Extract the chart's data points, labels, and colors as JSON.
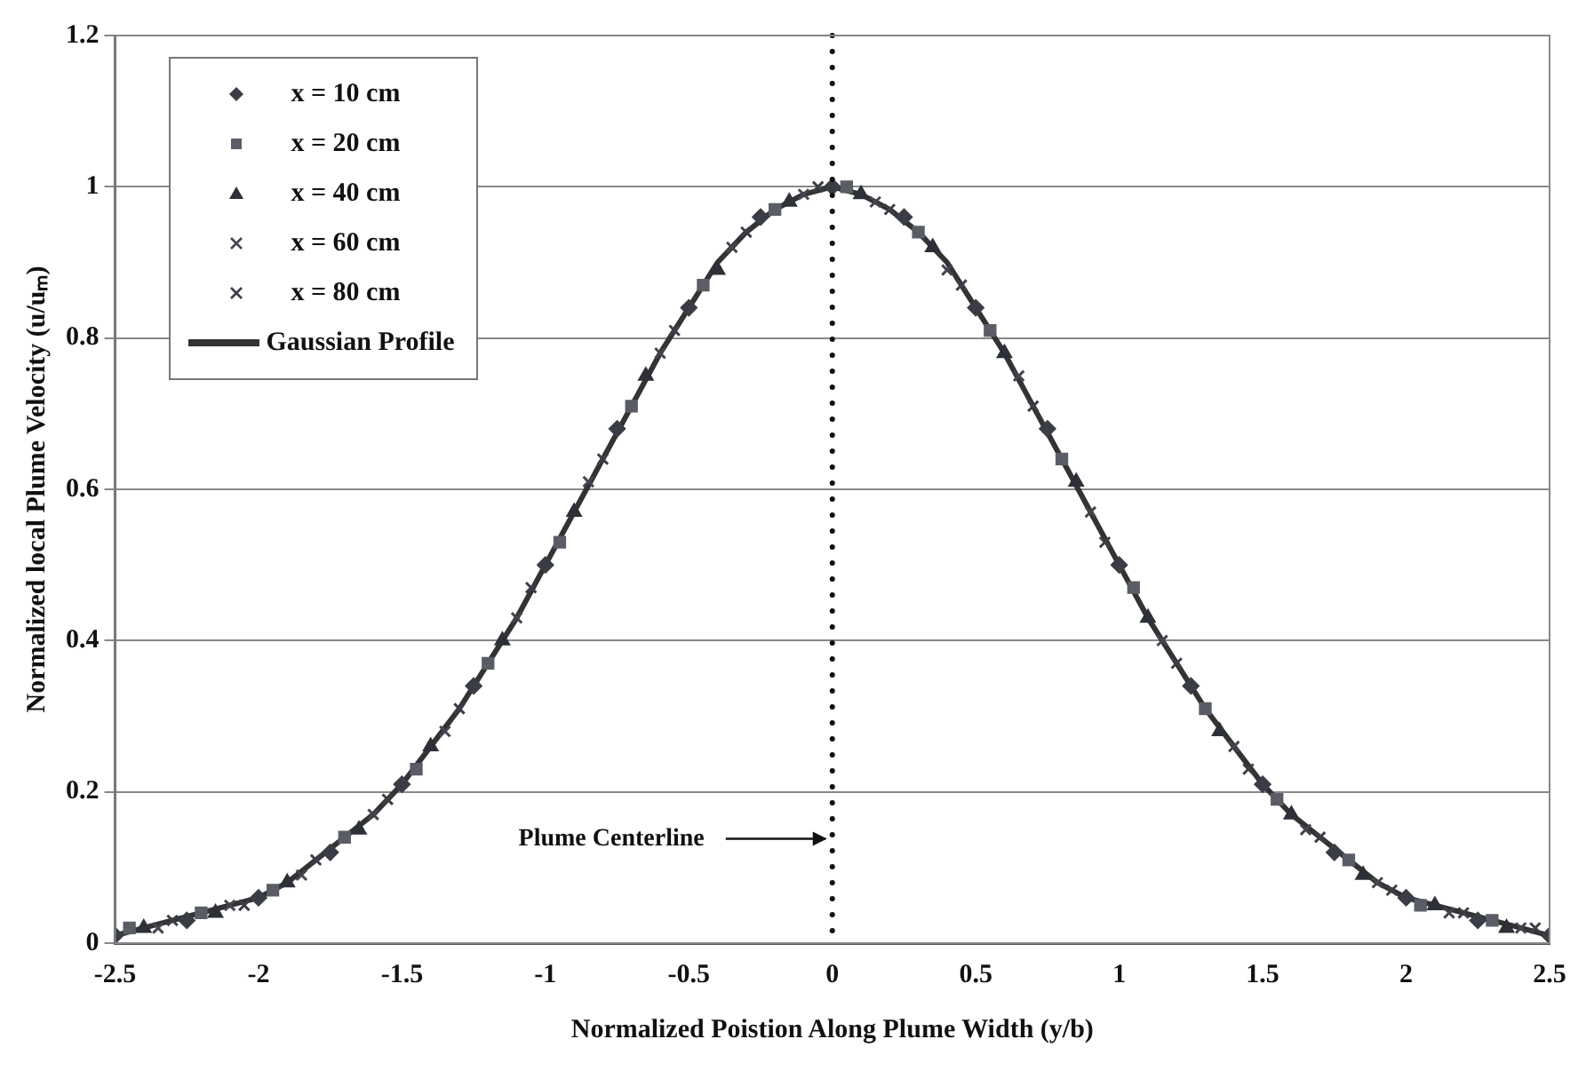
{
  "chart_data": {
    "type": "scatter",
    "xlabel": "Normalized Poistion Along Plume Width (y/b)",
    "ylabel": "Normalized local Plume Velocity (u/uₘ)",
    "x": [
      -2.5,
      -2.4,
      -2.3,
      -2.2,
      -2.1,
      -2.0,
      -1.9,
      -1.8,
      -1.7,
      -1.6,
      -1.5,
      -1.4,
      -1.3,
      -1.2,
      -1.1,
      -1.0,
      -0.9,
      -0.8,
      -0.7,
      -0.6,
      -0.5,
      -0.4,
      -0.3,
      -0.2,
      -0.1,
      0,
      0.1,
      0.2,
      0.3,
      0.4,
      0.5,
      0.6,
      0.7,
      0.8,
      0.9,
      1.0,
      1.1,
      1.2,
      1.3,
      1.4,
      1.5,
      1.6,
      1.7,
      1.8,
      1.9,
      2.0,
      2.1,
      2.2,
      2.3,
      2.4,
      2.5
    ],
    "series": [
      {
        "name": "x = 10 cm",
        "color": "#3a3d45",
        "marker": "diamond",
        "x": [
          -2.5,
          -2.25,
          -2,
          -1.75,
          -1.5,
          -1.25,
          -1,
          -0.75,
          -0.5,
          -0.25,
          0,
          0.25,
          0.5,
          0.75,
          1,
          1.25,
          1.5,
          1.75,
          2,
          2.25,
          2.5
        ],
        "values": [
          0.01,
          0.03,
          0.06,
          0.12,
          0.21,
          0.34,
          0.5,
          0.68,
          0.84,
          0.96,
          1,
          0.96,
          0.84,
          0.68,
          0.5,
          0.34,
          0.21,
          0.12,
          0.06,
          0.03,
          0.01
        ]
      },
      {
        "name": "x = 20 cm",
        "color": "#5a5d66",
        "marker": "square",
        "x": [
          -2.45,
          -2.2,
          -1.95,
          -1.7,
          -1.45,
          -1.2,
          -0.95,
          -0.7,
          -0.45,
          -0.2,
          0.05,
          0.3,
          0.55,
          0.8,
          1.05,
          1.3,
          1.55,
          1.8,
          2.05,
          2.3
        ],
        "values": [
          0.02,
          0.04,
          0.07,
          0.14,
          0.23,
          0.37,
          0.53,
          0.71,
          0.87,
          0.97,
          1,
          0.94,
          0.81,
          0.64,
          0.47,
          0.31,
          0.19,
          0.11,
          0.05,
          0.03
        ]
      },
      {
        "name": "x = 40 cm",
        "color": "#2e3038",
        "marker": "triangle",
        "x": [
          -2.4,
          -2.15,
          -1.9,
          -1.65,
          -1.4,
          -1.15,
          -0.9,
          -0.65,
          -0.4,
          -0.15,
          0.1,
          0.35,
          0.6,
          0.85,
          1.1,
          1.35,
          1.6,
          1.85,
          2.1,
          2.35
        ],
        "values": [
          0.02,
          0.04,
          0.08,
          0.15,
          0.26,
          0.4,
          0.57,
          0.75,
          0.89,
          0.98,
          0.99,
          0.92,
          0.78,
          0.61,
          0.43,
          0.28,
          0.17,
          0.09,
          0.05,
          0.02
        ]
      },
      {
        "name": "x = 60 cm",
        "color": "#44464e",
        "marker": "cross",
        "x": [
          -2.35,
          -2.1,
          -1.85,
          -1.6,
          -1.35,
          -1.1,
          -0.85,
          -0.6,
          -0.35,
          -0.1,
          0.15,
          0.4,
          0.65,
          0.9,
          1.15,
          1.4,
          1.65,
          1.9,
          2.15,
          2.4
        ],
        "values": [
          0.02,
          0.05,
          0.09,
          0.17,
          0.28,
          0.43,
          0.61,
          0.78,
          0.92,
          0.99,
          0.98,
          0.89,
          0.75,
          0.57,
          0.4,
          0.26,
          0.15,
          0.08,
          0.04,
          0.02
        ]
      },
      {
        "name": "x = 80 cm",
        "color": "#3c3e46",
        "marker": "cross",
        "x": [
          -2.3,
          -2.05,
          -1.8,
          -1.55,
          -1.3,
          -1.05,
          -0.8,
          -0.55,
          -0.3,
          -0.05,
          0.2,
          0.45,
          0.7,
          0.95,
          1.2,
          1.45,
          1.7,
          1.95,
          2.2,
          2.45
        ],
        "values": [
          0.03,
          0.05,
          0.11,
          0.19,
          0.31,
          0.47,
          0.64,
          0.81,
          0.94,
          1,
          0.97,
          0.87,
          0.71,
          0.53,
          0.37,
          0.23,
          0.14,
          0.07,
          0.04,
          0.02
        ]
      },
      {
        "name": "Gaussian Profile",
        "type": "line",
        "color": "#333333",
        "line_style": "solid",
        "values": [
          0.01,
          0.02,
          0.03,
          0.04,
          0.05,
          0.06,
          0.08,
          0.11,
          0.14,
          0.17,
          0.21,
          0.26,
          0.31,
          0.37,
          0.43,
          0.5,
          0.57,
          0.64,
          0.71,
          0.78,
          0.84,
          0.9,
          0.94,
          0.97,
          0.99,
          1,
          0.99,
          0.97,
          0.94,
          0.9,
          0.84,
          0.78,
          0.71,
          0.64,
          0.57,
          0.5,
          0.43,
          0.37,
          0.31,
          0.26,
          0.21,
          0.17,
          0.14,
          0.11,
          0.08,
          0.06,
          0.05,
          0.04,
          0.03,
          0.02,
          0.01
        ]
      }
    ],
    "xlim": [
      -2.5,
      2.5
    ],
    "xticks": [
      -2.5,
      -2,
      -1.5,
      -1,
      -0.5,
      0,
      0.5,
      1,
      1.5,
      2,
      2.5
    ],
    "ylim": [
      0,
      1.2
    ],
    "yticks": [
      0,
      0.2,
      0.4,
      0.6,
      0.8,
      1,
      1.2
    ],
    "grid": "y",
    "legend": "top left",
    "ref_lines": [
      {
        "axis": "x",
        "value": 0,
        "label": "Plume Centerline",
        "line_style": "dotted",
        "color": "#111111"
      }
    ]
  }
}
